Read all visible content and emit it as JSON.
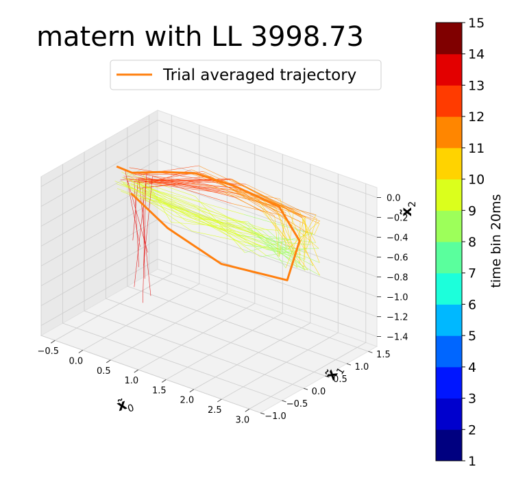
{
  "chart_data": {
    "type": "line",
    "projection": "3d",
    "title": "matern with LL 3998.73",
    "legend": {
      "placement": "top-right",
      "entries": [
        "Trial averaged trajectory"
      ]
    },
    "axes": {
      "x0": {
        "label": "x̃0",
        "range": [
          -0.75,
          3.2
        ],
        "ticks": [
          "−0.5",
          "0.0",
          "0.5",
          "1.0",
          "1.5",
          "2.0",
          "2.5",
          "3.0"
        ]
      },
      "x1": {
        "label": "x̃1",
        "range": [
          -1.0,
          1.7
        ],
        "ticks": [
          "−1.0",
          "−0.5",
          "0.0",
          "0.5",
          "1.0",
          "1.5"
        ]
      },
      "x2": {
        "label": "x̃2",
        "range": [
          -1.5,
          0.1
        ],
        "ticks": [
          "0.0",
          "−0.2",
          "−0.4",
          "−0.6",
          "−0.8",
          "−1.0",
          "−1.2",
          "−1.4"
        ]
      }
    },
    "grid": true,
    "colorbar": {
      "label": "time bin 20ms",
      "ticks": [
        "1",
        "2",
        "3",
        "4",
        "5",
        "6",
        "7",
        "8",
        "9",
        "10",
        "11",
        "12",
        "13",
        "14",
        "15"
      ],
      "colors": [
        "#000080",
        "#0000cd",
        "#0016ff",
        "#0066ff",
        "#00b8ff",
        "#1cffdb",
        "#5aff9d",
        "#9dff5a",
        "#dbff1c",
        "#ffd300",
        "#ff8600",
        "#ff3b00",
        "#e30000",
        "#800000"
      ]
    },
    "series": [
      {
        "name": "Trial averaged trajectory",
        "color": "#ff7f0e",
        "x0": [
          -0.4,
          -0.2,
          0.2,
          0.7,
          1.3,
          2.1,
          2.7,
          2.75,
          1.6,
          0.6,
          -0.1
        ],
        "x1": [
          0.3,
          0.4,
          0.55,
          0.7,
          0.85,
          0.85,
          0.55,
          0.2,
          0.15,
          0.2,
          0.25
        ],
        "x2": [
          -0.05,
          -0.1,
          -0.05,
          0.0,
          -0.05,
          -0.1,
          -0.25,
          -0.55,
          -0.6,
          -0.45,
          -0.25
        ]
      }
    ]
  }
}
